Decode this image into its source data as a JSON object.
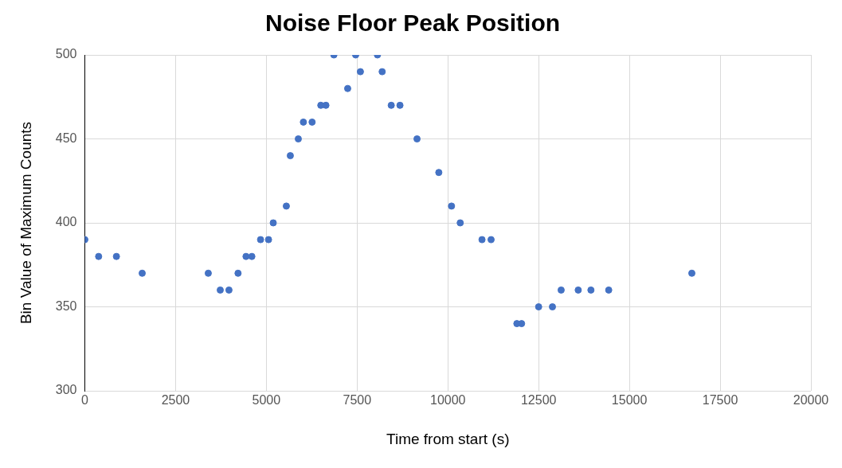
{
  "chart_data": {
    "type": "scatter",
    "title": "Noise Floor Peak Position",
    "xlabel": "Time from start (s)",
    "ylabel": "Bin Value of Maximum Counts",
    "x": [
      0,
      380,
      870,
      1580,
      3400,
      3730,
      3970,
      4220,
      4440,
      4600,
      4840,
      5060,
      5190,
      5550,
      5660,
      5880,
      6020,
      6260,
      6500,
      6640,
      6860,
      7240,
      7460,
      7590,
      8060,
      8190,
      8440,
      8680,
      9150,
      9750,
      10100,
      10340,
      10940,
      11190,
      11900,
      12030,
      12500,
      12880,
      13120,
      13590,
      13940,
      14430,
      16720
    ],
    "series": [
      {
        "color": "#4472c4",
        "values": [
          390,
          380,
          380,
          370,
          370,
          360,
          360,
          370,
          380,
          380,
          390,
          390,
          400,
          410,
          440,
          450,
          460,
          460,
          470,
          470,
          500,
          480,
          500,
          490,
          500,
          490,
          470,
          470,
          450,
          430,
          410,
          400,
          390,
          390,
          340,
          340,
          350,
          350,
          360,
          360,
          360,
          360,
          370
        ]
      }
    ],
    "xlim": [
      0,
      20000
    ],
    "xticks": [
      0,
      2500,
      5000,
      7500,
      10000,
      12500,
      15000,
      17500,
      20000
    ],
    "ylim": [
      300,
      500
    ],
    "yticks": [
      300,
      350,
      400,
      450,
      500
    ],
    "grid": true,
    "legend": false,
    "marker": "circle"
  }
}
